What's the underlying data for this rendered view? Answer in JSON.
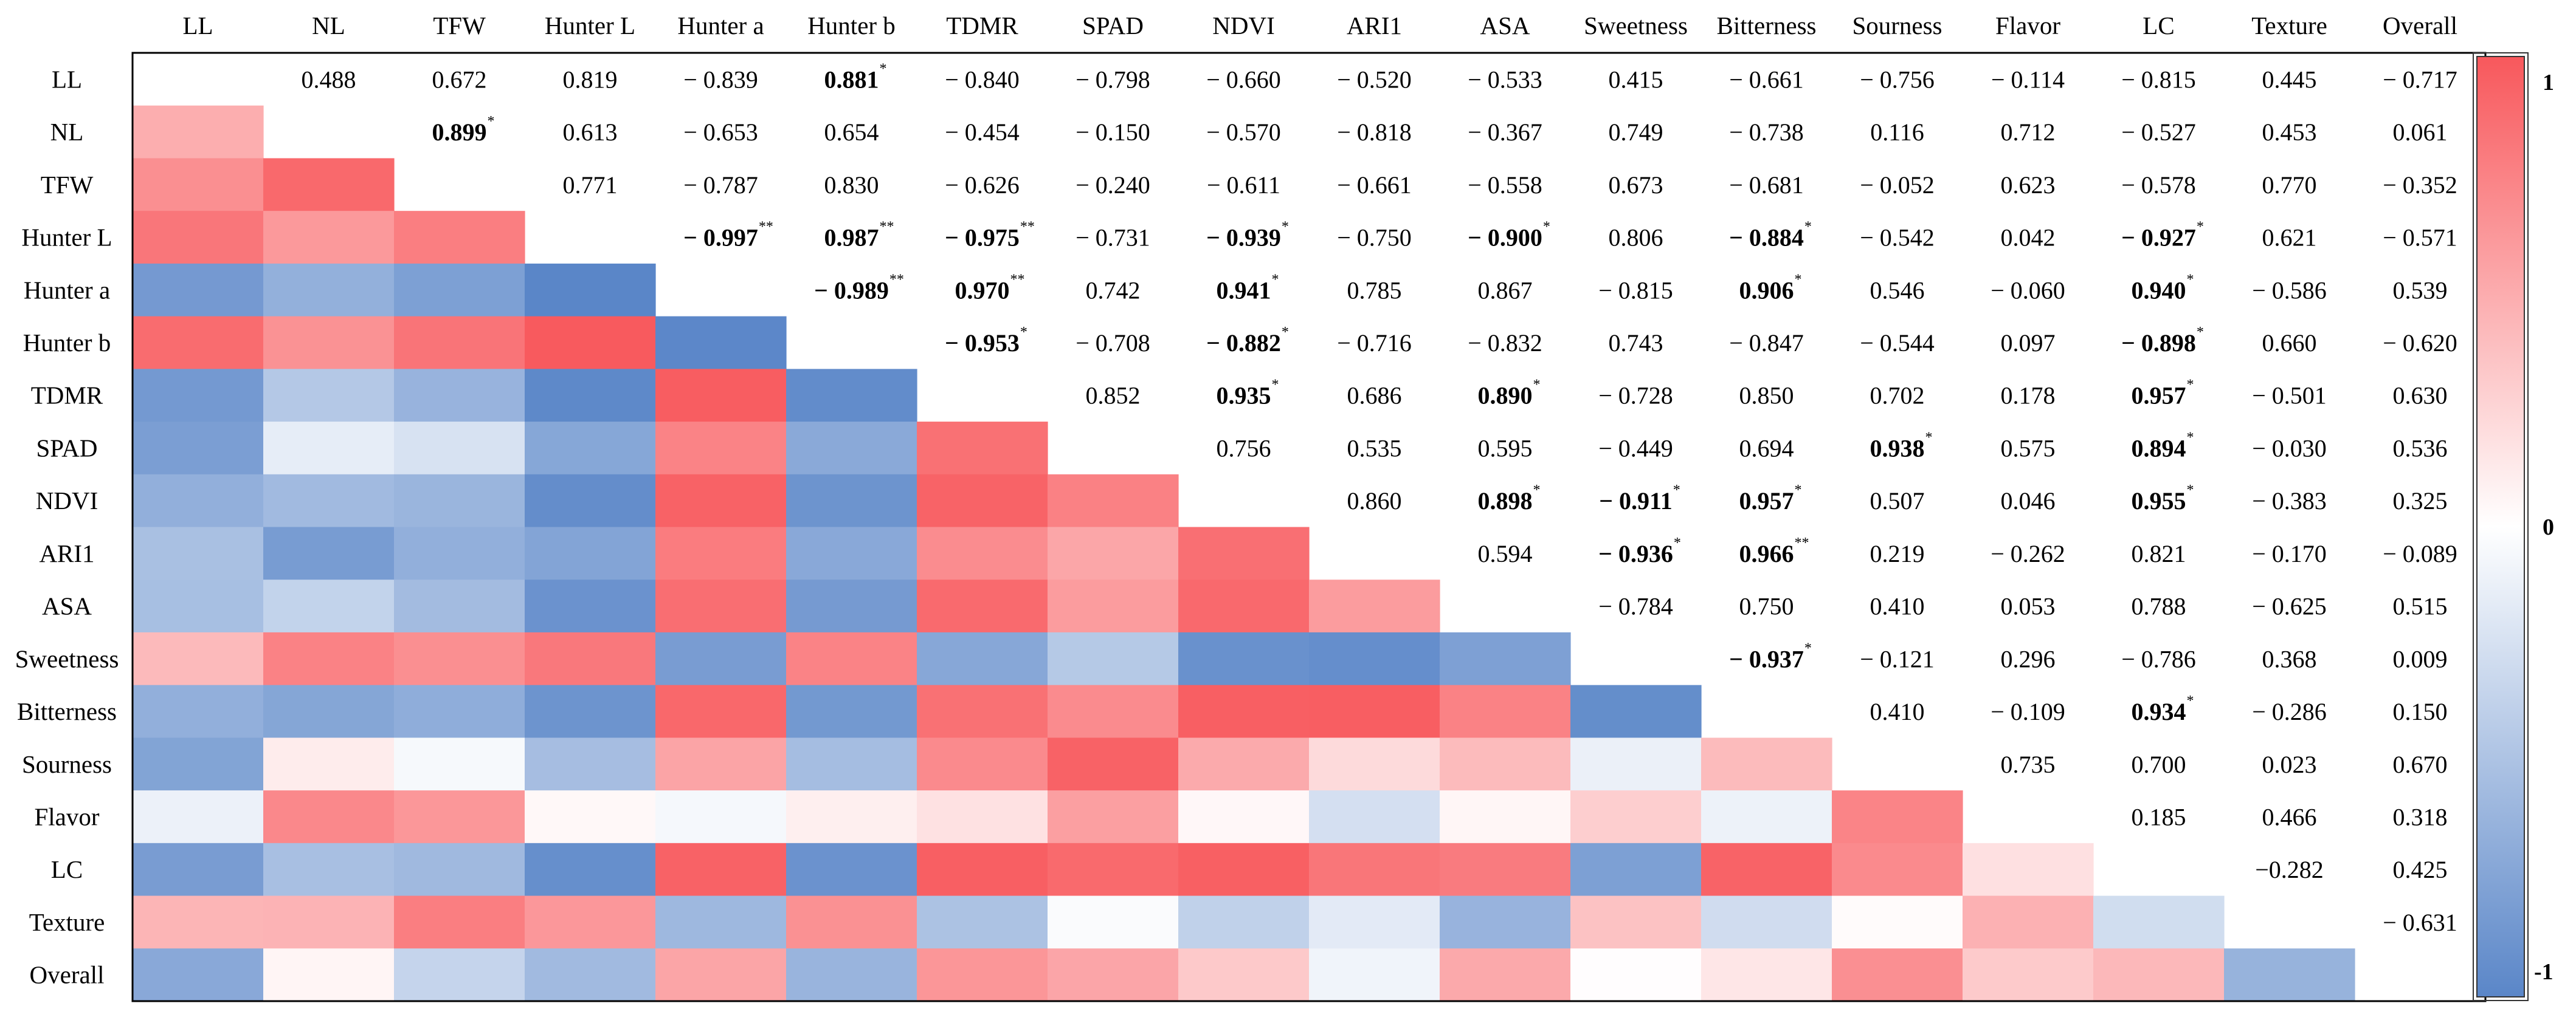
{
  "chart_data": {
    "type": "heatmap",
    "variables": [
      "LL",
      "NL",
      "TFW",
      "Hunter L",
      "Hunter a",
      "Hunter b",
      "TDMR",
      "SPAD",
      "NDVI",
      "ARI1",
      "ASA",
      "Sweetness",
      "Bitterness",
      "Sourness",
      "Flavor",
      "LC",
      "Texture",
      "Overall"
    ],
    "upper_triangle_labels": [
      [
        "LL",
        "NL",
        "0.488",
        ""
      ],
      [
        "LL",
        "TFW",
        "0.672",
        ""
      ],
      [
        "LL",
        "Hunter L",
        "0.819",
        ""
      ],
      [
        "LL",
        "Hunter a",
        "− 0.839",
        ""
      ],
      [
        "LL",
        "Hunter b",
        "0.881",
        "*"
      ],
      [
        "LL",
        "TDMR",
        "− 0.840",
        ""
      ],
      [
        "LL",
        "SPAD",
        "− 0.798",
        ""
      ],
      [
        "LL",
        "NDVI",
        "− 0.660",
        ""
      ],
      [
        "LL",
        "ARI1",
        "− 0.520",
        ""
      ],
      [
        "LL",
        "ASA",
        "− 0.533",
        ""
      ],
      [
        "LL",
        "Sweetness",
        "0.415",
        ""
      ],
      [
        "LL",
        "Bitterness",
        "− 0.661",
        ""
      ],
      [
        "LL",
        "Sourness",
        "− 0.756",
        ""
      ],
      [
        "LL",
        "Flavor",
        "− 0.114",
        ""
      ],
      [
        "LL",
        "LC",
        "− 0.815",
        ""
      ],
      [
        "LL",
        "Texture",
        "0.445",
        ""
      ],
      [
        "LL",
        "Overall",
        "− 0.717",
        ""
      ],
      [
        "NL",
        "TFW",
        "0.899",
        "*"
      ],
      [
        "NL",
        "Hunter L",
        "0.613",
        ""
      ],
      [
        "NL",
        "Hunter a",
        "− 0.653",
        ""
      ],
      [
        "NL",
        "Hunter b",
        "0.654",
        ""
      ],
      [
        "NL",
        "TDMR",
        "− 0.454",
        ""
      ],
      [
        "NL",
        "SPAD",
        "− 0.150",
        ""
      ],
      [
        "NL",
        "NDVI",
        "− 0.570",
        ""
      ],
      [
        "NL",
        "ARI1",
        "− 0.818",
        ""
      ],
      [
        "NL",
        "ASA",
        "− 0.367",
        ""
      ],
      [
        "NL",
        "Sweetness",
        "0.749",
        ""
      ],
      [
        "NL",
        "Bitterness",
        "− 0.738",
        ""
      ],
      [
        "NL",
        "Sourness",
        "0.116",
        ""
      ],
      [
        "NL",
        "Flavor",
        "0.712",
        ""
      ],
      [
        "NL",
        "LC",
        "− 0.527",
        ""
      ],
      [
        "NL",
        "Texture",
        "0.453",
        ""
      ],
      [
        "NL",
        "Overall",
        "0.061",
        ""
      ],
      [
        "TFW",
        "Hunter L",
        "0.771",
        ""
      ],
      [
        "TFW",
        "Hunter a",
        "− 0.787",
        ""
      ],
      [
        "TFW",
        "Hunter b",
        "0.830",
        ""
      ],
      [
        "TFW",
        "TDMR",
        "− 0.626",
        ""
      ],
      [
        "TFW",
        "SPAD",
        "− 0.240",
        ""
      ],
      [
        "TFW",
        "NDVI",
        "− 0.611",
        ""
      ],
      [
        "TFW",
        "ARI1",
        "− 0.661",
        ""
      ],
      [
        "TFW",
        "ASA",
        "− 0.558",
        ""
      ],
      [
        "TFW",
        "Sweetness",
        "0.673",
        ""
      ],
      [
        "TFW",
        "Bitterness",
        "− 0.681",
        ""
      ],
      [
        "TFW",
        "Sourness",
        "− 0.052",
        ""
      ],
      [
        "TFW",
        "Flavor",
        "0.623",
        ""
      ],
      [
        "TFW",
        "LC",
        "− 0.578",
        ""
      ],
      [
        "TFW",
        "Texture",
        "0.770",
        ""
      ],
      [
        "TFW",
        "Overall",
        "− 0.352",
        ""
      ],
      [
        "Hunter L",
        "Hunter a",
        "− 0.997",
        "**"
      ],
      [
        "Hunter L",
        "Hunter b",
        "0.987",
        "**"
      ],
      [
        "Hunter L",
        "TDMR",
        "− 0.975",
        "**"
      ],
      [
        "Hunter L",
        "SPAD",
        "− 0.731",
        ""
      ],
      [
        "Hunter L",
        "NDVI",
        "− 0.939",
        "*"
      ],
      [
        "Hunter L",
        "ARI1",
        "− 0.750",
        ""
      ],
      [
        "Hunter L",
        "ASA",
        "− 0.900",
        "*"
      ],
      [
        "Hunter L",
        "Sweetness",
        "0.806",
        ""
      ],
      [
        "Hunter L",
        "Bitterness",
        "− 0.884",
        "*"
      ],
      [
        "Hunter L",
        "Sourness",
        "− 0.542",
        ""
      ],
      [
        "Hunter L",
        "Flavor",
        "0.042",
        ""
      ],
      [
        "Hunter L",
        "LC",
        "− 0.927",
        "*"
      ],
      [
        "Hunter L",
        "Texture",
        "0.621",
        ""
      ],
      [
        "Hunter L",
        "Overall",
        "− 0.571",
        ""
      ],
      [
        "Hunter a",
        "Hunter b",
        "− 0.989",
        "**"
      ],
      [
        "Hunter a",
        "TDMR",
        "0.970",
        "**"
      ],
      [
        "Hunter a",
        "SPAD",
        "0.742",
        ""
      ],
      [
        "Hunter a",
        "NDVI",
        "0.941",
        "*"
      ],
      [
        "Hunter a",
        "ARI1",
        "0.785",
        ""
      ],
      [
        "Hunter a",
        "ASA",
        "0.867",
        ""
      ],
      [
        "Hunter a",
        "Sweetness",
        "− 0.815",
        ""
      ],
      [
        "Hunter a",
        "Bitterness",
        "0.906",
        "*"
      ],
      [
        "Hunter a",
        "Sourness",
        "0.546",
        ""
      ],
      [
        "Hunter a",
        "Flavor",
        "− 0.060",
        ""
      ],
      [
        "Hunter a",
        "LC",
        "0.940",
        "*"
      ],
      [
        "Hunter a",
        "Texture",
        "− 0.586",
        ""
      ],
      [
        "Hunter a",
        "Overall",
        "0.539",
        ""
      ],
      [
        "Hunter b",
        "TDMR",
        "− 0.953",
        "*"
      ],
      [
        "Hunter b",
        "SPAD",
        "− 0.708",
        ""
      ],
      [
        "Hunter b",
        "NDVI",
        "− 0.882",
        "*"
      ],
      [
        "Hunter b",
        "ARI1",
        "− 0.716",
        ""
      ],
      [
        "Hunter b",
        "ASA",
        "− 0.832",
        ""
      ],
      [
        "Hunter b",
        "Sweetness",
        "0.743",
        ""
      ],
      [
        "Hunter b",
        "Bitterness",
        "− 0.847",
        ""
      ],
      [
        "Hunter b",
        "Sourness",
        "− 0.544",
        ""
      ],
      [
        "Hunter b",
        "Flavor",
        "0.097",
        ""
      ],
      [
        "Hunter b",
        "LC",
        "− 0.898",
        "*"
      ],
      [
        "Hunter b",
        "Texture",
        "0.660",
        ""
      ],
      [
        "Hunter b",
        "Overall",
        "− 0.620",
        ""
      ],
      [
        "TDMR",
        "SPAD",
        "0.852",
        ""
      ],
      [
        "TDMR",
        "NDVI",
        "0.935",
        "*"
      ],
      [
        "TDMR",
        "ARI1",
        "0.686",
        ""
      ],
      [
        "TDMR",
        "ASA",
        "0.890",
        "*"
      ],
      [
        "TDMR",
        "Sweetness",
        "− 0.728",
        ""
      ],
      [
        "TDMR",
        "Bitterness",
        "0.850",
        ""
      ],
      [
        "TDMR",
        "Sourness",
        "0.702",
        ""
      ],
      [
        "TDMR",
        "Flavor",
        "0.178",
        ""
      ],
      [
        "TDMR",
        "LC",
        "0.957",
        "*"
      ],
      [
        "TDMR",
        "Texture",
        "− 0.501",
        ""
      ],
      [
        "TDMR",
        "Overall",
        "0.630",
        ""
      ],
      [
        "SPAD",
        "NDVI",
        "0.756",
        ""
      ],
      [
        "SPAD",
        "ARI1",
        "0.535",
        ""
      ],
      [
        "SPAD",
        "ASA",
        "0.595",
        ""
      ],
      [
        "SPAD",
        "Sweetness",
        "− 0.449",
        ""
      ],
      [
        "SPAD",
        "Bitterness",
        "0.694",
        ""
      ],
      [
        "SPAD",
        "Sourness",
        "0.938",
        "*"
      ],
      [
        "SPAD",
        "Flavor",
        "0.575",
        ""
      ],
      [
        "SPAD",
        "LC",
        "0.894",
        "*"
      ],
      [
        "SPAD",
        "Texture",
        "− 0.030",
        ""
      ],
      [
        "SPAD",
        "Overall",
        "0.536",
        ""
      ],
      [
        "NDVI",
        "ARI1",
        "0.860",
        ""
      ],
      [
        "NDVI",
        "ASA",
        "0.898",
        "*"
      ],
      [
        "NDVI",
        "Sweetness",
        "− 0.911",
        "*"
      ],
      [
        "NDVI",
        "Bitterness",
        "0.957",
        "*"
      ],
      [
        "NDVI",
        "Sourness",
        "0.507",
        ""
      ],
      [
        "NDVI",
        "Flavor",
        "0.046",
        ""
      ],
      [
        "NDVI",
        "LC",
        "0.955",
        "*"
      ],
      [
        "NDVI",
        "Texture",
        "− 0.383",
        ""
      ],
      [
        "NDVI",
        "Overall",
        "0.325",
        ""
      ],
      [
        "ARI1",
        "ASA",
        "0.594",
        ""
      ],
      [
        "ARI1",
        "Sweetness",
        "− 0.936",
        "*"
      ],
      [
        "ARI1",
        "Bitterness",
        "0.966",
        "**"
      ],
      [
        "ARI1",
        "Sourness",
        "0.219",
        ""
      ],
      [
        "ARI1",
        "Flavor",
        "− 0.262",
        ""
      ],
      [
        "ARI1",
        "LC",
        "0.821",
        ""
      ],
      [
        "ARI1",
        "Texture",
        "− 0.170",
        ""
      ],
      [
        "ARI1",
        "Overall",
        "− 0.089",
        ""
      ],
      [
        "ASA",
        "Sweetness",
        "− 0.784",
        ""
      ],
      [
        "ASA",
        "Bitterness",
        "0.750",
        ""
      ],
      [
        "ASA",
        "Sourness",
        "0.410",
        ""
      ],
      [
        "ASA",
        "Flavor",
        "0.053",
        ""
      ],
      [
        "ASA",
        "LC",
        "0.788",
        ""
      ],
      [
        "ASA",
        "Texture",
        "− 0.625",
        ""
      ],
      [
        "ASA",
        "Overall",
        "0.515",
        ""
      ],
      [
        "Sweetness",
        "Bitterness",
        "− 0.937",
        "*"
      ],
      [
        "Sweetness",
        "Sourness",
        "− 0.121",
        ""
      ],
      [
        "Sweetness",
        "Flavor",
        "0.296",
        ""
      ],
      [
        "Sweetness",
        "LC",
        "− 0.786",
        ""
      ],
      [
        "Sweetness",
        "Texture",
        "0.368",
        ""
      ],
      [
        "Sweetness",
        "Overall",
        "0.009",
        ""
      ],
      [
        "Bitterness",
        "Sourness",
        "0.410",
        ""
      ],
      [
        "Bitterness",
        "Flavor",
        "− 0.109",
        ""
      ],
      [
        "Bitterness",
        "LC",
        "0.934",
        "*"
      ],
      [
        "Bitterness",
        "Texture",
        "− 0.286",
        ""
      ],
      [
        "Bitterness",
        "Overall",
        "0.150",
        ""
      ],
      [
        "Sourness",
        "Flavor",
        "0.735",
        ""
      ],
      [
        "Sourness",
        "LC",
        "0.700",
        ""
      ],
      [
        "Sourness",
        "Texture",
        "0.023",
        ""
      ],
      [
        "Sourness",
        "Overall",
        "0.670",
        ""
      ],
      [
        "Flavor",
        "LC",
        "0.185",
        ""
      ],
      [
        "Flavor",
        "Texture",
        "0.466",
        ""
      ],
      [
        "Flavor",
        "Overall",
        "0.318",
        ""
      ],
      [
        "LC",
        "Texture",
        "−0.282",
        ""
      ],
      [
        "LC",
        "Overall",
        "0.425",
        ""
      ],
      [
        "Texture",
        "Overall",
        "− 0.631",
        ""
      ]
    ],
    "colorbar": {
      "ticks": [
        "1",
        "0",
        "-1"
      ],
      "colors": {
        "positive": "#f8585c",
        "zero": "#ffffff",
        "negative": "#5a86c8"
      }
    },
    "range": [
      -1,
      1
    ]
  }
}
